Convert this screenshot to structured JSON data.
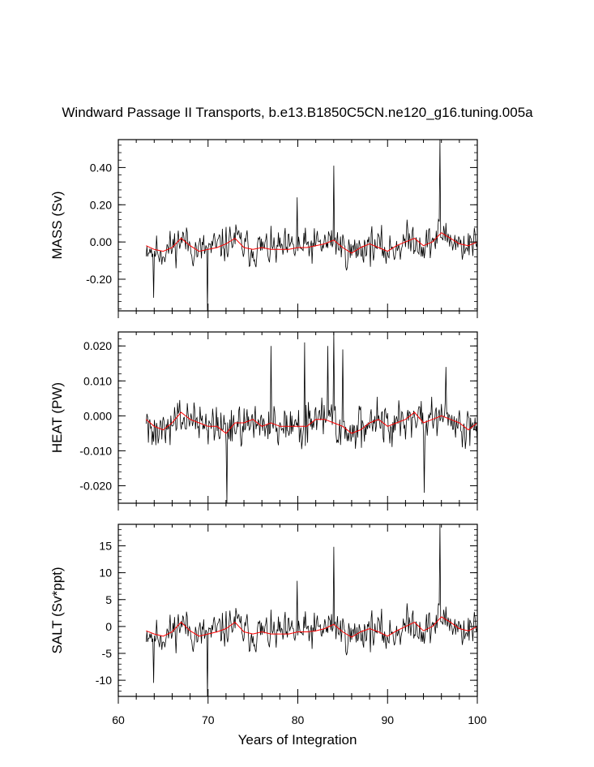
{
  "title": "Windward Passage II Transports, b.e13.B1850C5CN.ne120_g16.tuning.005a",
  "xlabel": "Years of Integration",
  "colors": {
    "raw": "#000000",
    "smoothed": "#ff0000",
    "frame": "#000000"
  },
  "chart_data": [
    {
      "type": "line",
      "ylabel": "MASS (Sv)",
      "xlim": [
        60,
        100
      ],
      "ylim": [
        -0.37,
        0.55
      ],
      "xticks": [
        "60",
        "70",
        "80",
        "90",
        "100"
      ],
      "yticks": [
        {
          "value": 0.4,
          "label": "0.40"
        },
        {
          "value": 0.2,
          "label": "0.20"
        },
        {
          "value": 0.0,
          "label": "0.00"
        },
        {
          "value": -0.2,
          "label": "-0.20"
        }
      ],
      "yminor_step": 0.04,
      "series": [
        {
          "style": "raw",
          "x_start": 63.1,
          "x_end": 100,
          "seed": 11,
          "amplitude": 0.07,
          "spikes": [
            [
              63.9,
              -0.3
            ],
            [
              69.9,
              -0.37
            ],
            [
              84.0,
              0.41
            ],
            [
              95.8,
              0.55
            ],
            [
              79.9,
              0.24
            ]
          ]
        },
        {
          "style": "smoothed",
          "x": [
            63.1,
            64,
            65,
            66,
            67,
            68,
            69,
            70,
            71,
            72,
            73,
            74,
            75,
            76,
            77,
            78,
            79,
            80,
            81,
            82,
            83,
            84,
            85,
            86,
            87,
            88,
            89,
            90,
            91,
            92,
            93,
            94,
            95,
            96,
            97,
            98,
            99,
            100
          ],
          "y": [
            -0.02,
            -0.04,
            -0.05,
            -0.03,
            0.02,
            -0.02,
            -0.05,
            -0.04,
            -0.03,
            -0.01,
            0.02,
            -0.03,
            -0.04,
            -0.03,
            -0.04,
            -0.04,
            -0.04,
            -0.03,
            -0.03,
            -0.02,
            -0.01,
            0.01,
            -0.03,
            -0.06,
            -0.03,
            -0.01,
            -0.03,
            -0.05,
            -0.02,
            0.0,
            0.02,
            -0.02,
            0.0,
            0.05,
            0.02,
            -0.01,
            -0.02,
            0.0
          ]
        }
      ]
    },
    {
      "type": "line",
      "ylabel": "HEAT (PW)",
      "xlim": [
        60,
        100
      ],
      "ylim": [
        -0.025,
        0.024
      ],
      "xticks": [
        "60",
        "70",
        "80",
        "90",
        "100"
      ],
      "yticks": [
        {
          "value": 0.02,
          "label": "0.020"
        },
        {
          "value": 0.01,
          "label": "0.010"
        },
        {
          "value": 0.0,
          "label": "0.000"
        },
        {
          "value": -0.01,
          "label": "-0.010"
        },
        {
          "value": -0.02,
          "label": "-0.020"
        }
      ],
      "yminor_step": 0.002,
      "series": [
        {
          "style": "raw",
          "x_start": 63.1,
          "x_end": 100,
          "seed": 27,
          "amplitude": 0.0045,
          "spikes": [
            [
              72.1,
              -0.025
            ],
            [
              77.0,
              0.02
            ],
            [
              80.8,
              0.021
            ],
            [
              83.3,
              0.02
            ],
            [
              84.0,
              0.024
            ],
            [
              85.0,
              0.019
            ],
            [
              94.1,
              -0.022
            ],
            [
              96.5,
              0.014
            ]
          ]
        },
        {
          "style": "smoothed",
          "x": [
            63.1,
            64,
            65,
            66,
            67,
            68,
            69,
            70,
            71,
            72,
            73,
            74,
            75,
            76,
            77,
            78,
            79,
            80,
            81,
            82,
            83,
            84,
            85,
            86,
            87,
            88,
            89,
            90,
            91,
            92,
            93,
            94,
            95,
            96,
            97,
            98,
            99,
            100
          ],
          "y": [
            -0.001,
            -0.003,
            -0.004,
            -0.002,
            0.001,
            -0.001,
            -0.002,
            -0.003,
            -0.003,
            -0.005,
            -0.002,
            -0.002,
            -0.001,
            -0.003,
            -0.002,
            -0.003,
            -0.003,
            -0.003,
            -0.003,
            -0.001,
            -0.001,
            -0.002,
            -0.003,
            -0.005,
            -0.004,
            -0.002,
            -0.001,
            -0.003,
            -0.002,
            -0.001,
            0.001,
            -0.002,
            -0.001,
            0.0,
            -0.001,
            -0.002,
            -0.004,
            -0.002
          ]
        }
      ]
    },
    {
      "type": "line",
      "ylabel": "SALT (Sv*ppt)",
      "xlim": [
        60,
        100
      ],
      "ylim": [
        -13,
        19
      ],
      "xticks": [
        "60",
        "70",
        "80",
        "90",
        "100"
      ],
      "xtick_labels_shown": true,
      "yticks": [
        {
          "value": 15,
          "label": "15"
        },
        {
          "value": 10,
          "label": "10"
        },
        {
          "value": 5,
          "label": "5"
        },
        {
          "value": 0,
          "label": "0"
        },
        {
          "value": -5,
          "label": "-5"
        },
        {
          "value": -10,
          "label": "-10"
        }
      ],
      "yminor_step": 1,
      "series": [
        {
          "style": "raw",
          "x_start": 63.1,
          "x_end": 100,
          "seed": 11,
          "amplitude": 2.5,
          "spikes": [
            [
              63.9,
              -10.5
            ],
            [
              69.9,
              -13
            ],
            [
              84.0,
              14.8
            ],
            [
              95.8,
              19
            ],
            [
              79.9,
              8.5
            ]
          ]
        },
        {
          "style": "smoothed",
          "x": [
            63.1,
            64,
            65,
            66,
            67,
            68,
            69,
            70,
            71,
            72,
            73,
            74,
            75,
            76,
            77,
            78,
            79,
            80,
            81,
            82,
            83,
            84,
            85,
            86,
            87,
            88,
            89,
            90,
            91,
            92,
            93,
            94,
            95,
            96,
            97,
            98,
            99,
            100
          ],
          "y": [
            -0.8,
            -1.4,
            -1.8,
            -1.0,
            0.8,
            -0.8,
            -1.8,
            -1.4,
            -1.0,
            -0.4,
            0.8,
            -1.0,
            -1.4,
            -1.0,
            -1.4,
            -1.4,
            -1.4,
            -1.0,
            -1.0,
            -0.8,
            -0.4,
            0.4,
            -1.0,
            -2.0,
            -1.0,
            -0.4,
            -1.0,
            -1.8,
            -0.8,
            0.0,
            0.8,
            -0.8,
            0.0,
            1.8,
            0.8,
            -0.4,
            -0.8,
            0.0
          ]
        }
      ]
    }
  ]
}
